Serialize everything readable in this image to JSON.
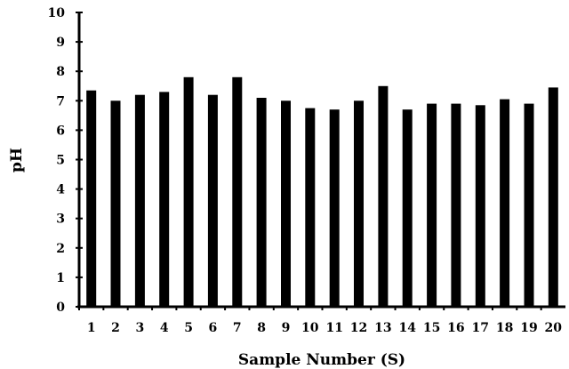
{
  "chart_data": {
    "type": "bar",
    "title": "",
    "xlabel": "Sample Number (S)",
    "ylabel": "pH",
    "ylim": [
      0,
      10
    ],
    "yticks": [
      "0",
      "1",
      "2",
      "3",
      "4",
      "5",
      "6",
      "7",
      "8",
      "9",
      "10"
    ],
    "categories": [
      "1",
      "2",
      "3",
      "4",
      "5",
      "6",
      "7",
      "8",
      "9",
      "10",
      "11",
      "12",
      "13",
      "14",
      "15",
      "16",
      "17",
      "18",
      "19",
      "20"
    ],
    "values": [
      7.35,
      7.0,
      7.2,
      7.3,
      7.8,
      7.2,
      7.8,
      7.1,
      7.0,
      6.75,
      6.7,
      7.0,
      7.5,
      6.7,
      6.9,
      6.9,
      6.85,
      7.05,
      6.9,
      7.45
    ],
    "bar_color": "#000000",
    "grid": false,
    "legend": "none"
  }
}
